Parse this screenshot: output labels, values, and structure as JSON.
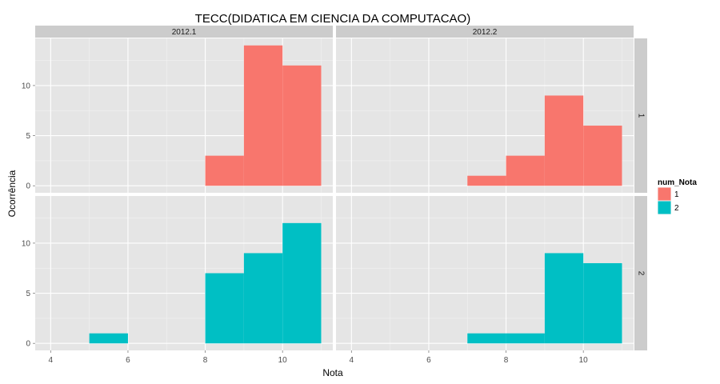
{
  "chart_data": {
    "type": "bar",
    "title": "TECC(DIDATICA EM CIENCIA DA COMPUTACAO)",
    "xlabel": "Nota",
    "ylabel": "Ocorrência",
    "xlim": [
      3.6,
      11.3
    ],
    "ylim": [
      -0.7,
      14.7
    ],
    "x_ticks": [
      4,
      6,
      8,
      10
    ],
    "y_ticks": [
      0,
      5,
      10
    ],
    "bin_width": 1,
    "grid": true,
    "legend": {
      "title": "num_Nota",
      "placement": "right",
      "entries": [
        "1",
        "2"
      ]
    },
    "columns": [
      "2012.1",
      "2012.2"
    ],
    "rows": [
      "1",
      "2"
    ],
    "series": [
      {
        "name": "1",
        "color": "#F8766D",
        "column": "2012.1",
        "row": "1",
        "bins": [
          {
            "x0": 8,
            "x1": 9,
            "count": 3
          },
          {
            "x0": 9,
            "x1": 10,
            "count": 14
          },
          {
            "x0": 10,
            "x1": 11,
            "count": 12
          }
        ]
      },
      {
        "name": "1",
        "color": "#F8766D",
        "column": "2012.2",
        "row": "1",
        "bins": [
          {
            "x0": 7,
            "x1": 8,
            "count": 1
          },
          {
            "x0": 8,
            "x1": 9,
            "count": 3
          },
          {
            "x0": 9,
            "x1": 10,
            "count": 9
          },
          {
            "x0": 10,
            "x1": 11,
            "count": 6
          }
        ]
      },
      {
        "name": "2",
        "color": "#00BFC4",
        "column": "2012.1",
        "row": "2",
        "bins": [
          {
            "x0": 5,
            "x1": 6,
            "count": 1
          },
          {
            "x0": 8,
            "x1": 9,
            "count": 7
          },
          {
            "x0": 9,
            "x1": 10,
            "count": 9
          },
          {
            "x0": 10,
            "x1": 11,
            "count": 12
          }
        ]
      },
      {
        "name": "2",
        "color": "#00BFC4",
        "column": "2012.2",
        "row": "2",
        "bins": [
          {
            "x0": 7,
            "x1": 8,
            "count": 1
          },
          {
            "x0": 8,
            "x1": 9,
            "count": 1
          },
          {
            "x0": 9,
            "x1": 10,
            "count": 9
          },
          {
            "x0": 10,
            "x1": 11,
            "count": 8
          }
        ]
      }
    ]
  }
}
